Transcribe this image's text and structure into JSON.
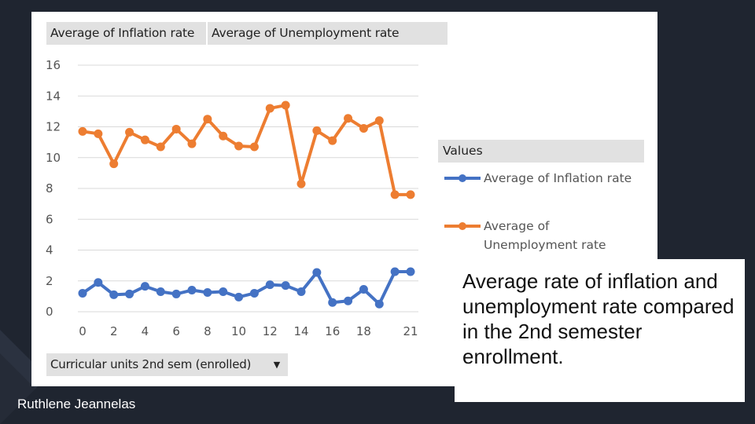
{
  "pivot": {
    "value_fields": [
      "Average of Inflation rate",
      "Average of Unemployment rate"
    ],
    "axis_field": "Curricular units 2nd sem (enrolled)",
    "axis_dropdown_icon": "chevron-down-icon",
    "legend_title": "Values"
  },
  "caption": "Average rate of inflation and unemployment rate compared in the 2nd semester enrollment.",
  "author": "Ruthlene Jeannelas",
  "chart_data": {
    "type": "line",
    "x": [
      0,
      1,
      2,
      3,
      4,
      5,
      6,
      7,
      8,
      9,
      10,
      11,
      12,
      13,
      14,
      15,
      16,
      17,
      18,
      19,
      20,
      21
    ],
    "x_ticks": [
      "0",
      "2",
      "4",
      "6",
      "8",
      "10",
      "12",
      "14",
      "16",
      "18",
      "21"
    ],
    "x_tick_values": [
      0,
      2,
      4,
      6,
      8,
      10,
      12,
      14,
      16,
      18,
      21
    ],
    "y_ticks": [
      0,
      2,
      4,
      6,
      8,
      10,
      12,
      14,
      16
    ],
    "ylim": [
      0,
      16
    ],
    "grid": true,
    "legend_position": "right",
    "series": [
      {
        "name": "Average of Inflation rate",
        "color": "#4472c4",
        "values": [
          1.2,
          1.9,
          1.1,
          1.15,
          1.65,
          1.3,
          1.15,
          1.4,
          1.25,
          1.3,
          0.95,
          1.2,
          1.75,
          1.7,
          1.3,
          2.55,
          0.6,
          0.7,
          1.45,
          0.5,
          2.6,
          2.6
        ]
      },
      {
        "name": "Average of Unemployment rate",
        "color": "#ed7d31",
        "values": [
          11.7,
          11.55,
          9.6,
          11.65,
          11.15,
          10.7,
          11.85,
          10.9,
          12.5,
          11.4,
          10.75,
          10.7,
          13.2,
          13.4,
          8.3,
          11.75,
          11.1,
          12.55,
          11.9,
          12.4,
          7.6,
          7.6
        ]
      }
    ]
  }
}
